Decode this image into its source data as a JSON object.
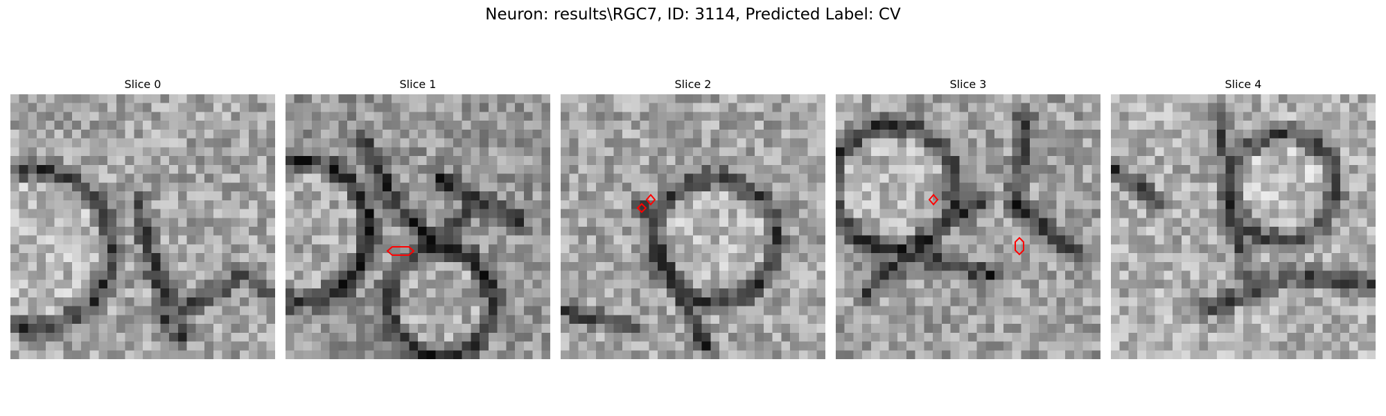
{
  "figure": {
    "title": "Neuron: results\\RGC7, ID: 3114, Predicted Label: CV",
    "annotation_color": "#ff0000",
    "colormap": "gray"
  },
  "slices": [
    {
      "title": "Slice 0",
      "annotations": []
    },
    {
      "title": "Slice 1",
      "annotations": [
        {
          "shape": "hexagon-horizontal"
        }
      ]
    },
    {
      "title": "Slice 2",
      "annotations": [
        {
          "shape": "diamond"
        },
        {
          "shape": "diamond"
        }
      ]
    },
    {
      "title": "Slice 3",
      "annotations": [
        {
          "shape": "diamond"
        },
        {
          "shape": "hexagon-vertical"
        }
      ]
    },
    {
      "title": "Slice 4",
      "annotations": []
    }
  ]
}
